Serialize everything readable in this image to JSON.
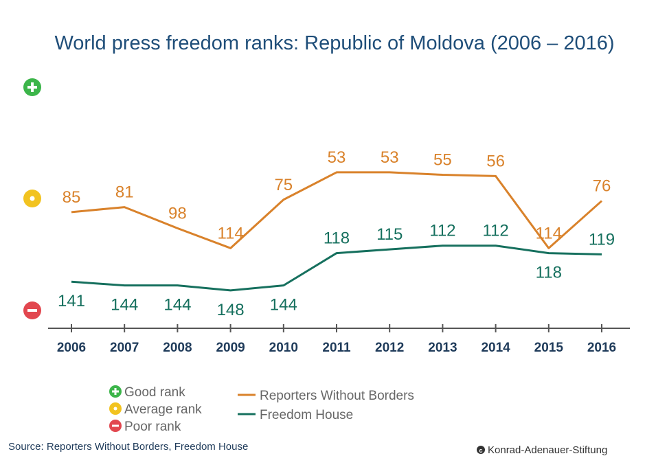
{
  "colors": {
    "rsf": "#d9822b",
    "fh": "#16705e",
    "good": "#3cb54a",
    "average": "#f2c320",
    "poor": "#e2474f",
    "title": "#1f4e79",
    "axis": "#555555"
  },
  "icons": {
    "good": "plus-circle-icon",
    "average": "dot-circle-icon",
    "poor": "minus-circle-icon"
  },
  "chart_data": {
    "type": "line",
    "title": "World press freedom ranks: Republic of Moldova (2006 – 2016)",
    "xlabel": "",
    "ylabel": "",
    "categories": [
      "2006",
      "2007",
      "2008",
      "2009",
      "2010",
      "2011",
      "2012",
      "2013",
      "2014",
      "2015",
      "2016"
    ],
    "y_inverted": true,
    "series": [
      {
        "name": "Reporters Without Borders",
        "color": "#d9822b",
        "values": [
          85,
          81,
          98,
          114,
          75,
          53,
          53,
          55,
          56,
          114,
          76
        ]
      },
      {
        "name": "Freedom House",
        "color": "#16705e",
        "values": [
          141,
          144,
          144,
          148,
          144,
          118,
          115,
          112,
          112,
          118,
          119
        ]
      }
    ],
    "grid": false,
    "legend": "bottom-left"
  },
  "legend": {
    "good": "Good rank",
    "average": "Average rank",
    "poor": "Poor rank"
  },
  "footer": {
    "source": "Source: Reporters Without Borders, Freedom House",
    "credit": "Konrad-Adenauer-Stiftung"
  }
}
